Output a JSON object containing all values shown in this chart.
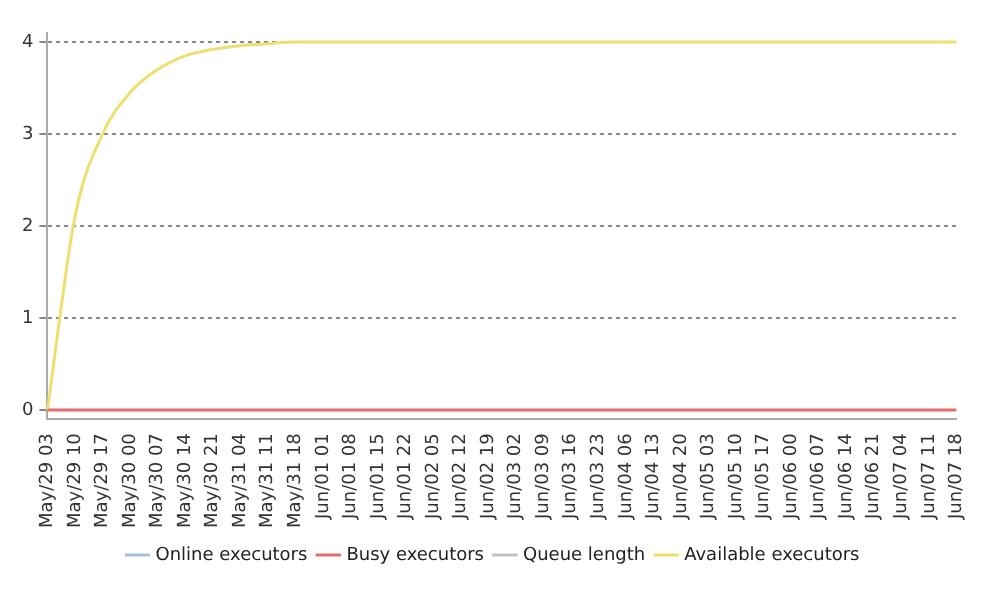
{
  "chart_data": {
    "type": "line",
    "categories": [
      "May/29 03",
      "May/29 10",
      "May/29 17",
      "May/30 00",
      "May/30 07",
      "May/30 14",
      "May/30 21",
      "May/31 04",
      "May/31 11",
      "May/31 18",
      "Jun/01 01",
      "Jun/01 08",
      "Jun/01 15",
      "Jun/01 22",
      "Jun/02 05",
      "Jun/02 12",
      "Jun/02 19",
      "Jun/03 02",
      "Jun/03 09",
      "Jun/03 16",
      "Jun/03 23",
      "Jun/04 06",
      "Jun/04 13",
      "Jun/04 20",
      "Jun/05 03",
      "Jun/05 10",
      "Jun/05 17",
      "Jun/06 00",
      "Jun/06 07",
      "Jun/06 14",
      "Jun/06 21",
      "Jun/07 04",
      "Jun/07 11",
      "Jun/07 18"
    ],
    "series": [
      {
        "name": "Online executors",
        "color": "#a8c0e0",
        "values": [
          null,
          null,
          null,
          null,
          null,
          null,
          null,
          null,
          null,
          null,
          null,
          null,
          null,
          null,
          null,
          null,
          null,
          null,
          null,
          null,
          null,
          null,
          null,
          null,
          null,
          null,
          null,
          null,
          null,
          null,
          null,
          null,
          null,
          null
        ]
      },
      {
        "name": "Busy executors",
        "color": "#e86a6a",
        "values": [
          0,
          0,
          0,
          0,
          0,
          0,
          0,
          0,
          0,
          0,
          0,
          0,
          0,
          0,
          0,
          0,
          0,
          0,
          0,
          0,
          0,
          0,
          0,
          0,
          0,
          0,
          0,
          0,
          0,
          0,
          0,
          0,
          0,
          0
        ]
      },
      {
        "name": "Queue length",
        "color": "#c0c0c0",
        "values": [
          null,
          null,
          null,
          null,
          null,
          null,
          null,
          null,
          null,
          null,
          null,
          null,
          null,
          null,
          null,
          null,
          null,
          null,
          null,
          null,
          null,
          null,
          null,
          null,
          null,
          null,
          null,
          null,
          null,
          null,
          null,
          null,
          null,
          null
        ]
      },
      {
        "name": "Available executors",
        "color": "#eee070",
        "values": [
          0,
          2.1,
          3.0,
          3.45,
          3.7,
          3.85,
          3.92,
          3.96,
          3.98,
          4,
          4,
          4,
          4,
          4,
          4,
          4,
          4,
          4,
          4,
          4,
          4,
          4,
          4,
          4,
          4,
          4,
          4,
          4,
          4,
          4,
          4,
          4,
          4,
          4
        ]
      }
    ],
    "ylim": [
      -0.1,
      4.1
    ],
    "yticks": [
      0,
      1,
      2,
      3,
      4
    ],
    "grid": "y",
    "legend": "bottom",
    "marker": "none",
    "line_style": "solid"
  }
}
